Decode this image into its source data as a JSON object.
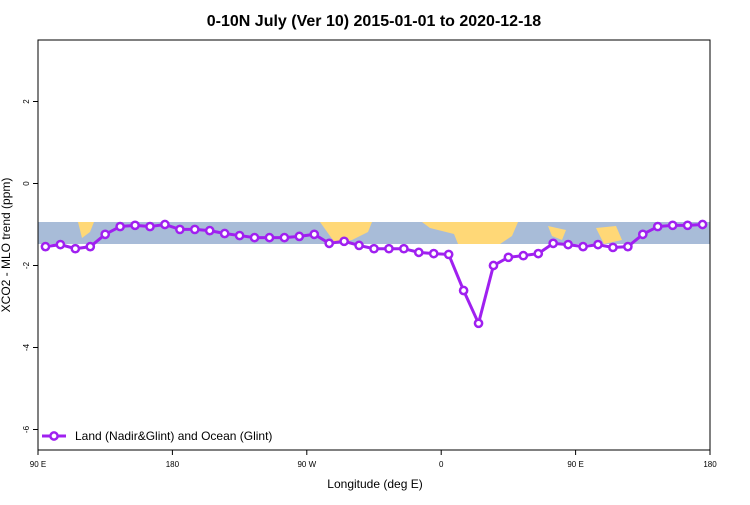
{
  "chart_data": {
    "type": "line",
    "title": "0-10N July (Ver 10)   2015-01-01 to 2020-12-18",
    "x_label": "Longitude (deg E)",
    "y_label": "XCO2 - MLO trend (ppm)",
    "x": [
      95,
      105,
      115,
      125,
      135,
      145,
      155,
      165,
      175,
      185,
      195,
      205,
      215,
      225,
      235,
      245,
      255,
      265,
      275,
      285,
      295,
      305,
      315,
      325,
      335,
      345,
      355,
      365,
      375,
      385,
      395,
      405,
      415,
      425,
      435,
      445,
      455,
      465,
      475,
      485,
      495,
      505,
      515,
      525,
      535
    ],
    "series": [
      {
        "name": "Land (Nadir&Glint) and Ocean (Glint)",
        "color": "#a020f0",
        "values": [
          -1.54,
          -1.49,
          -1.59,
          -1.54,
          -1.24,
          -1.05,
          -1.02,
          -1.05,
          -1.0,
          -1.12,
          -1.12,
          -1.15,
          -1.22,
          -1.27,
          -1.32,
          -1.32,
          -1.32,
          -1.29,
          -1.24,
          -1.46,
          -1.41,
          -1.51,
          -1.59,
          -1.59,
          -1.59,
          -1.68,
          -1.71,
          -1.73,
          -2.61,
          -3.41,
          -2.0,
          -1.8,
          -1.76,
          -1.71,
          -1.46,
          -1.49,
          -1.54,
          -1.49,
          -1.56,
          -1.54,
          -1.24,
          -1.05,
          -1.02,
          -1.02,
          -1.0
        ]
      }
    ],
    "xlim": [
      90,
      540
    ],
    "xticks": [
      {
        "value": 90,
        "label": "90 E"
      },
      180,
      {
        "value": 270,
        "label": "90 W"
      },
      {
        "value": 360,
        "label": "0"
      },
      {
        "value": 450,
        "label": "90 E"
      },
      {
        "value": 540,
        "label": "180"
      }
    ],
    "ylim": [
      -6.5,
      3.5
    ],
    "yticks": [
      -6,
      -4,
      -2,
      0,
      2
    ],
    "legend": "bottom-left"
  }
}
